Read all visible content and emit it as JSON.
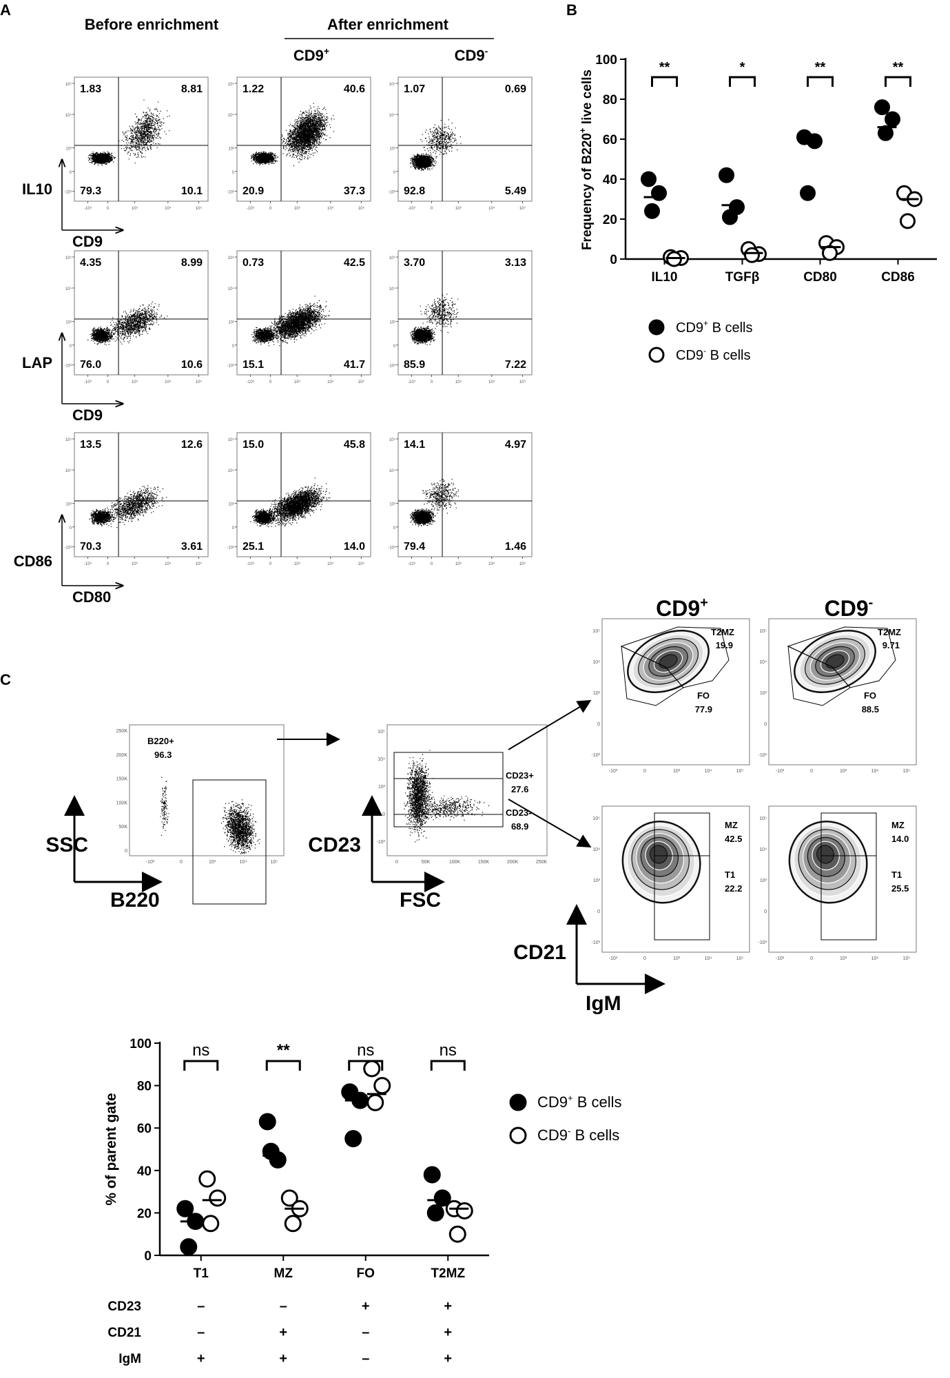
{
  "panel_labels": {
    "a": "A",
    "b": "B",
    "c": "C"
  },
  "panel_a": {
    "col_headers": {
      "before": "Before enrichment",
      "after": "After enrichment",
      "cd9pos_base": "CD9",
      "cd9pos_sup": "+",
      "cd9neg_base": "CD9",
      "cd9neg_sup": "-"
    },
    "rows": [
      {
        "ylabel": "IL10",
        "xlabel": "CD9",
        "plots": [
          {
            "q": [
              "1.83",
              "8.81",
              "79.3",
              "10.1"
            ],
            "cloud": "upright",
            "density": 0.55
          },
          {
            "q": [
              "1.22",
              "40.6",
              "20.9",
              "37.3"
            ],
            "cloud": "upright_strong",
            "density": 0.85
          },
          {
            "q": [
              "1.07",
              "0.69",
              "92.8",
              "5.49"
            ],
            "cloud": "lowleft",
            "density": 0.45
          }
        ]
      },
      {
        "ylabel": "LAP",
        "xlabel": "CD9",
        "plots": [
          {
            "q": [
              "4.35",
              "8.99",
              "76.0",
              "10.6"
            ],
            "cloud": "diag",
            "density": 0.6
          },
          {
            "q": [
              "0.73",
              "42.5",
              "15.1",
              "41.7"
            ],
            "cloud": "diag_strong",
            "density": 0.85
          },
          {
            "q": [
              "3.70",
              "3.13",
              "85.9",
              "7.22"
            ],
            "cloud": "lowleft",
            "density": 0.5
          }
        ]
      },
      {
        "ylabel": "CD86",
        "xlabel": "CD80",
        "plots": [
          {
            "q": [
              "13.5",
              "12.6",
              "70.3",
              "3.61"
            ],
            "cloud": "diag",
            "density": 0.6
          },
          {
            "q": [
              "15.0",
              "45.8",
              "25.1",
              "14.0"
            ],
            "cloud": "diag_strong",
            "density": 0.85
          },
          {
            "q": [
              "14.1",
              "4.97",
              "79.4",
              "1.46"
            ],
            "cloud": "lowleft",
            "density": 0.5
          }
        ]
      }
    ]
  },
  "panel_c_flow": {
    "headers": {
      "cd9pos_base": "CD9",
      "cd9pos_sup": "+",
      "cd9neg_base": "CD9",
      "cd9neg_sup": "-"
    },
    "plot1": {
      "ylabel": "SSC",
      "xlabel": "B220",
      "gate": "B220+",
      "gate_value": "96.3",
      "yticks": [
        "250K",
        "200K",
        "150K",
        "100K",
        "50K",
        "0"
      ]
    },
    "plot2": {
      "ylabel": "CD23",
      "xlabel": "FSC",
      "gate_top": "CD23+",
      "gate_top_value": "27.6",
      "gate_bottom": "CD23-",
      "gate_bottom_value": "68.9",
      "xticks": [
        "0",
        "50K",
        "100K",
        "150K",
        "200K",
        "250K"
      ]
    },
    "zoom_top": [
      {
        "gate_a": "T2MZ",
        "val_a": "19.9",
        "gate_b": "FO",
        "val_b": "77.9"
      },
      {
        "gate_a": "T2MZ",
        "val_a": "9.71",
        "gate_b": "FO",
        "val_b": "88.5"
      }
    ],
    "zoom_bottom": [
      {
        "gate_a": "MZ",
        "val_a": "42.5",
        "gate_b": "T1",
        "val_b": "22.2"
      },
      {
        "gate_a": "MZ",
        "val_a": "14.0",
        "gate_b": "T1",
        "val_b": "25.5"
      }
    ],
    "zoom_ylabel": "CD21",
    "zoom_xlabel": "IgM"
  },
  "chart_data": [
    {
      "type": "scatter",
      "panel": "B",
      "ylabel_base": "Frequency of B220",
      "ylabel_sup": "+",
      "ylabel_tail": " live cells",
      "ylim": [
        0,
        100
      ],
      "yticks": [
        0,
        20,
        40,
        60,
        80,
        100
      ],
      "categories": [
        "IL10",
        "TGFβ",
        "CD80",
        "CD86"
      ],
      "significance": [
        "**",
        "*",
        "**",
        "**"
      ],
      "series": [
        {
          "name": "CD9+ B cells",
          "legend_base": "CD9",
          "legend_sup": "+",
          "legend_tail": " B cells",
          "filled": true,
          "points": [
            [
              40,
              33,
              24
            ],
            [
              42,
              26,
              21
            ],
            [
              61,
              59,
              33
            ],
            [
              76,
              70,
              63
            ]
          ],
          "means": [
            31,
            27,
            60,
            66
          ]
        },
        {
          "name": "CD9- B cells",
          "legend_base": "CD9",
          "legend_sup": "-",
          "legend_tail": " B cells",
          "filled": false,
          "points": [
            [
              1,
              0.5,
              0
            ],
            [
              5,
              2.5,
              2
            ],
            [
              8,
              6,
              3
            ],
            [
              33,
              30,
              19
            ]
          ],
          "means": [
            0.5,
            3,
            6,
            30
          ]
        }
      ]
    },
    {
      "type": "scatter",
      "panel": "C",
      "ylabel": "% of parent gate",
      "ylim": [
        0,
        100
      ],
      "yticks": [
        0,
        20,
        40,
        60,
        80,
        100
      ],
      "categories": [
        "T1",
        "MZ",
        "FO",
        "T2MZ"
      ],
      "significance": [
        "ns",
        "**",
        "ns",
        "ns"
      ],
      "markers": {
        "rows": [
          "CD23",
          "CD21",
          "IgM"
        ],
        "values": [
          [
            "–",
            "–",
            "+",
            "+"
          ],
          [
            "–",
            "+",
            "–",
            "+"
          ],
          [
            "+",
            "+",
            "–",
            "+"
          ]
        ]
      },
      "series": [
        {
          "name": "CD9+ B cells",
          "legend_base": "CD9",
          "legend_sup": "+",
          "legend_tail": " B cells",
          "filled": true,
          "points": [
            [
              22,
              16,
              4
            ],
            [
              63,
              45,
              49
            ],
            [
              77,
              73,
              55
            ],
            [
              38,
              27,
              20
            ]
          ],
          "means": [
            16,
            47,
            73,
            26
          ]
        },
        {
          "name": "CD9- B cells",
          "legend_base": "CD9",
          "legend_sup": "-",
          "legend_tail": " B cells",
          "filled": false,
          "points": [
            [
              36,
              27,
              15
            ],
            [
              27,
              22,
              15
            ],
            [
              88,
              80,
              72
            ],
            [
              22,
              21,
              10
            ]
          ],
          "means": [
            26,
            22,
            76,
            22
          ]
        }
      ]
    }
  ]
}
